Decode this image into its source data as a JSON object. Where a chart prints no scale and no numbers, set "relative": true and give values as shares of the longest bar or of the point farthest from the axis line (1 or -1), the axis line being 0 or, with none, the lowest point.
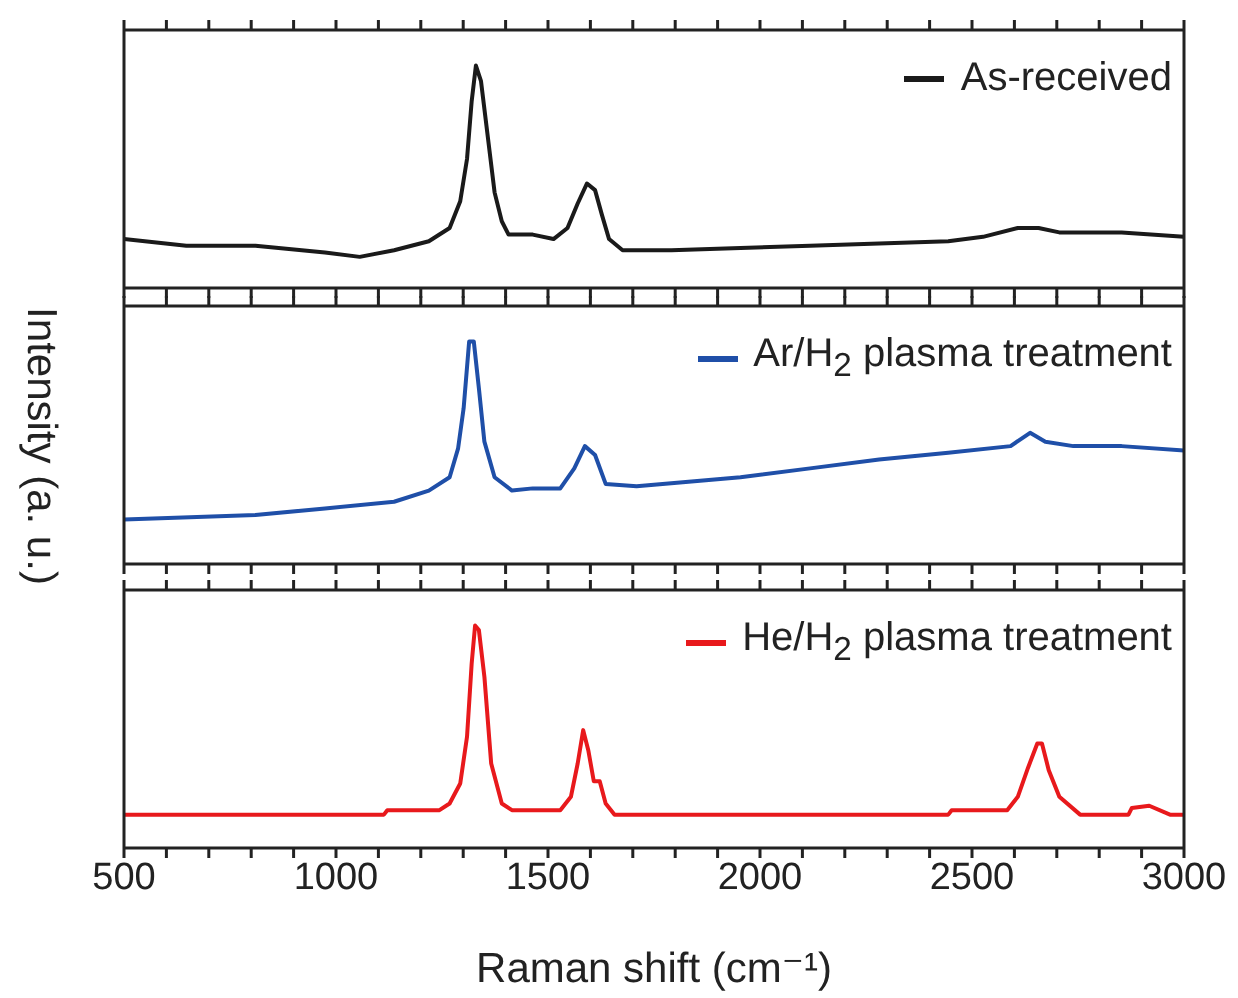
{
  "chart_data": [
    {
      "type": "line",
      "relative": true,
      "legend": "top right",
      "tick_labels": false,
      "xlim": [
        500,
        3000
      ],
      "xticks": [
        500,
        {
          "value": 600,
          "label": null
        },
        {
          "value": 700,
          "label": null
        },
        {
          "value": 800,
          "label": null
        },
        {
          "value": 900,
          "label": null
        },
        1000,
        {
          "value": 1100,
          "label": null
        },
        {
          "value": 1200,
          "label": null
        },
        {
          "value": 1300,
          "label": null
        },
        {
          "value": 1400,
          "label": null
        },
        1500,
        {
          "value": 1600,
          "label": null
        },
        {
          "value": 1700,
          "label": null
        },
        {
          "value": 1800,
          "label": null
        },
        {
          "value": 1900,
          "label": null
        },
        2000,
        {
          "value": 2100,
          "label": null
        },
        {
          "value": 2200,
          "label": null
        },
        {
          "value": 2300,
          "label": null
        },
        {
          "value": 2400,
          "label": null
        },
        2500,
        {
          "value": 2600,
          "label": null
        },
        {
          "value": 2700,
          "label": null
        },
        {
          "value": 2800,
          "label": null
        },
        {
          "value": 2900,
          "label": null
        },
        3000
      ],
      "series": [
        {
          "name": "As-received",
          "color": "#1a1a1a",
          "x": [
            500,
            647,
            810,
            974,
            1056,
            1137,
            1219,
            1268,
            1293,
            1309,
            1320,
            1330,
            1342,
            1358,
            1374,
            1391,
            1407,
            1464,
            1513,
            1546,
            1570,
            1592,
            1611,
            1627,
            1644,
            1676,
            1791,
            1954,
            2118,
            2281,
            2444,
            2526,
            2608,
            2657,
            2706,
            2853,
            3000
          ],
          "values": [
            0.22,
            0.19,
            0.19,
            0.16,
            0.14,
            0.17,
            0.21,
            0.27,
            0.39,
            0.58,
            0.84,
            1,
            0.93,
            0.68,
            0.43,
            0.3,
            0.24,
            0.24,
            0.22,
            0.27,
            0.38,
            0.47,
            0.44,
            0.33,
            0.22,
            0.17,
            0.17,
            0.18,
            0.19,
            0.2,
            0.21,
            0.23,
            0.27,
            0.27,
            0.25,
            0.25,
            0.23
          ]
        }
      ]
    },
    {
      "type": "line",
      "relative": true,
      "legend": "top right",
      "tick_labels": false,
      "ylabel": "Intensity (a. u.)",
      "xlim": [
        500,
        3000
      ],
      "xticks": [
        500,
        {
          "value": 600,
          "label": null
        },
        {
          "value": 700,
          "label": null
        },
        {
          "value": 800,
          "label": null
        },
        {
          "value": 900,
          "label": null
        },
        1000,
        {
          "value": 1100,
          "label": null
        },
        {
          "value": 1200,
          "label": null
        },
        {
          "value": 1300,
          "label": null
        },
        {
          "value": 1400,
          "label": null
        },
        1500,
        {
          "value": 1600,
          "label": null
        },
        {
          "value": 1700,
          "label": null
        },
        {
          "value": 1800,
          "label": null
        },
        {
          "value": 1900,
          "label": null
        },
        2000,
        {
          "value": 2100,
          "label": null
        },
        {
          "value": 2200,
          "label": null
        },
        {
          "value": 2300,
          "label": null
        },
        {
          "value": 2400,
          "label": null
        },
        2500,
        {
          "value": 2600,
          "label": null
        },
        {
          "value": 2700,
          "label": null
        },
        {
          "value": 2800,
          "label": null
        },
        {
          "value": 2900,
          "label": null
        },
        3000
      ],
      "series": [
        {
          "name": "Ar/H$_{2}$ plasma treatment",
          "color": "#1f4fa8",
          "x": [
            500,
            810,
            974,
            1137,
            1219,
            1268,
            1288,
            1301,
            1314,
            1325,
            1337,
            1350,
            1374,
            1415,
            1464,
            1529,
            1562,
            1587,
            1611,
            1636,
            1709,
            1954,
            2118,
            2281,
            2444,
            2591,
            2637,
            2673,
            2739,
            2853,
            3000
          ],
          "values": [
            0.2,
            0.22,
            0.25,
            0.28,
            0.33,
            0.39,
            0.52,
            0.7,
            1,
            1,
            0.79,
            0.55,
            0.39,
            0.33,
            0.34,
            0.34,
            0.43,
            0.53,
            0.49,
            0.36,
            0.35,
            0.39,
            0.43,
            0.47,
            0.5,
            0.53,
            0.59,
            0.55,
            0.53,
            0.53,
            0.51
          ]
        }
      ]
    },
    {
      "type": "line",
      "relative": true,
      "legend": "top right",
      "tick_labels": "x",
      "xlabel": "Raman shift (cm⁻¹)",
      "xlim": [
        500,
        3000
      ],
      "xticks": [
        500,
        {
          "value": 600,
          "label": null
        },
        {
          "value": 700,
          "label": null
        },
        {
          "value": 800,
          "label": null
        },
        {
          "value": 900,
          "label": null
        },
        1000,
        {
          "value": 1100,
          "label": null
        },
        {
          "value": 1200,
          "label": null
        },
        {
          "value": 1300,
          "label": null
        },
        {
          "value": 1400,
          "label": null
        },
        1500,
        {
          "value": 1600,
          "label": null
        },
        {
          "value": 1700,
          "label": null
        },
        {
          "value": 1800,
          "label": null
        },
        {
          "value": 1900,
          "label": null
        },
        2000,
        {
          "value": 2100,
          "label": null
        },
        {
          "value": 2200,
          "label": null
        },
        {
          "value": 2300,
          "label": null
        },
        {
          "value": 2400,
          "label": null
        },
        2500,
        {
          "value": 2600,
          "label": null
        },
        {
          "value": 2700,
          "label": null
        },
        {
          "value": 2800,
          "label": null
        },
        {
          "value": 2900,
          "label": null
        },
        3000
      ],
      "series": [
        {
          "name": "He/H$_{2}$ plasma treatment",
          "color": "#e8191c",
          "x": [
            500,
            1113,
            1121,
            1244,
            1268,
            1293,
            1309,
            1320,
            1328,
            1337,
            1350,
            1366,
            1391,
            1415,
            1529,
            1554,
            1570,
            1583,
            1595,
            1608,
            1622,
            1636,
            1657,
            2444,
            2452,
            2583,
            2608,
            2632,
            2654,
            2665,
            2681,
            2706,
            2755,
            2869,
            2877,
            2918,
            2967,
            3000
          ],
          "values": [
            0.15,
            0.15,
            0.17,
            0.17,
            0.2,
            0.29,
            0.5,
            0.83,
            1,
            0.98,
            0.77,
            0.38,
            0.2,
            0.17,
            0.17,
            0.23,
            0.38,
            0.53,
            0.44,
            0.3,
            0.3,
            0.2,
            0.15,
            0.15,
            0.17,
            0.17,
            0.23,
            0.36,
            0.47,
            0.47,
            0.35,
            0.23,
            0.15,
            0.15,
            0.18,
            0.19,
            0.15,
            0.15
          ]
        }
      ]
    }
  ]
}
